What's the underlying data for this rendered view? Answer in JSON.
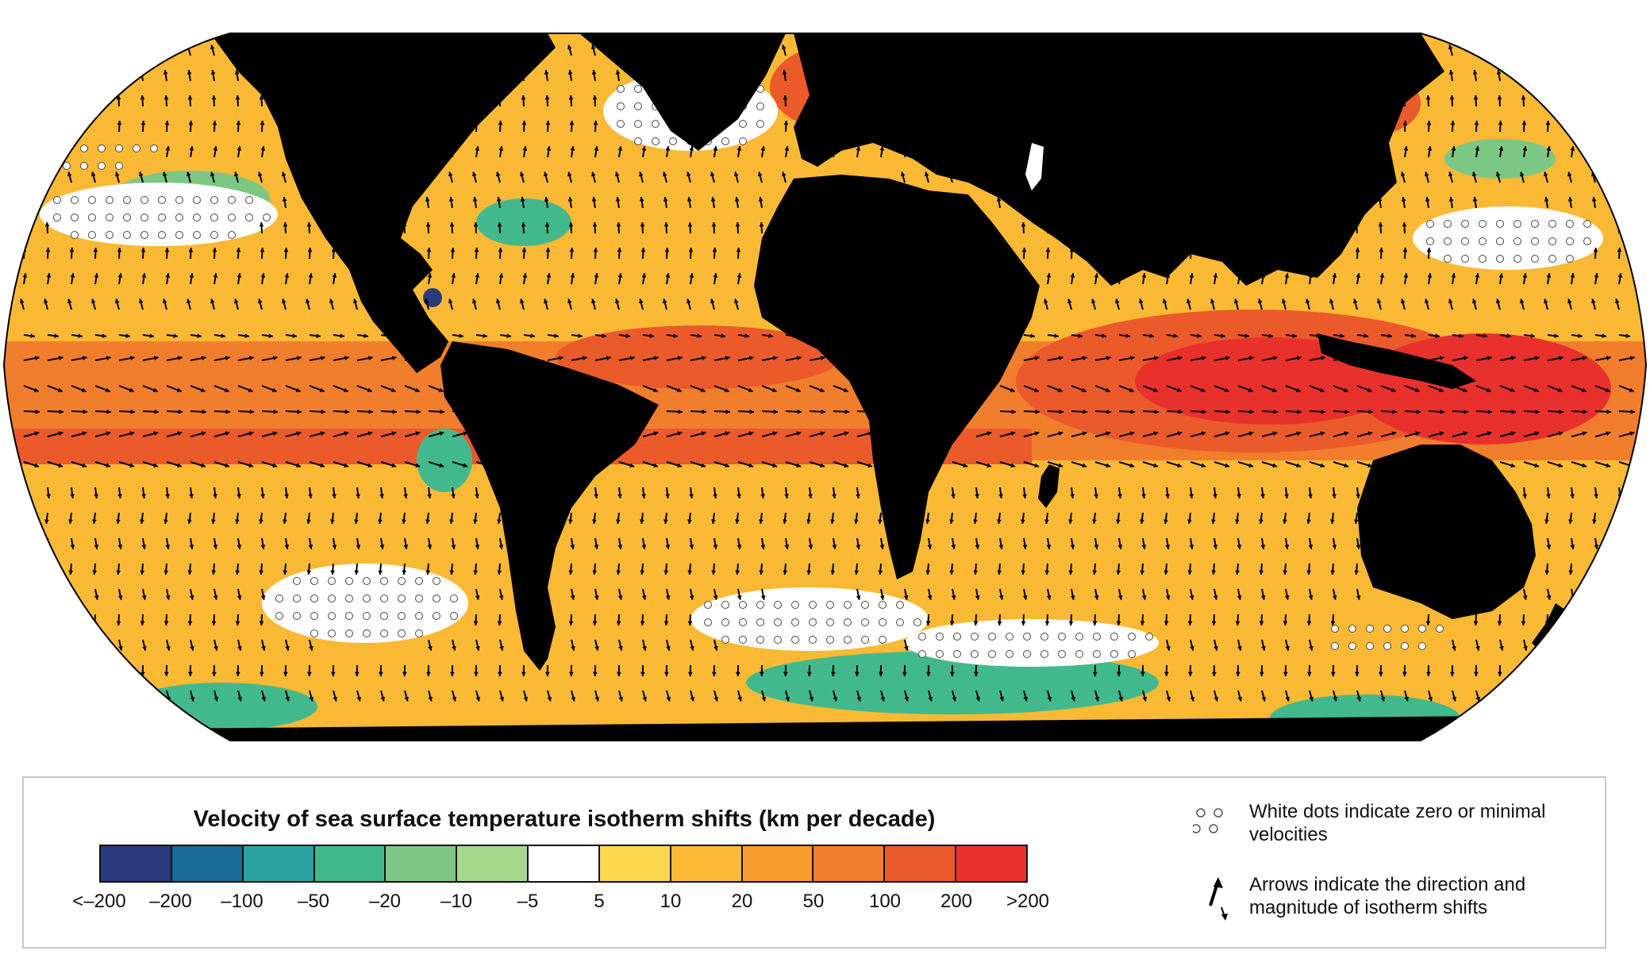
{
  "legend": {
    "title": "Velocity of sea surface temperature isotherm shifts (km per decade)",
    "bins": [
      {
        "color": "#2b3a7a"
      },
      {
        "color": "#1a6a96"
      },
      {
        "color": "#2aa3a0"
      },
      {
        "color": "#42b98c"
      },
      {
        "color": "#7cc784"
      },
      {
        "color": "#a6d98e"
      },
      {
        "color": "#ffffff"
      },
      {
        "color": "#fcd84e"
      },
      {
        "color": "#f9b935"
      },
      {
        "color": "#f69c2c"
      },
      {
        "color": "#f07e2c"
      },
      {
        "color": "#eb5a2b"
      },
      {
        "color": "#e8312c"
      }
    ],
    "ticks": [
      "<–200",
      "–200",
      "–100",
      "–50",
      "–20",
      "–10",
      "–5",
      "5",
      "10",
      "20",
      "50",
      "100",
      "200",
      ">200"
    ],
    "dots_note": "White dots indicate zero or minimal velocities",
    "arrows_note": "Arrows indicate the direction and magnitude of isotherm shifts"
  },
  "map": {
    "projection": "Robinson-like world map",
    "land_color": "#000000",
    "ocean_base_color": "#f9b935"
  }
}
